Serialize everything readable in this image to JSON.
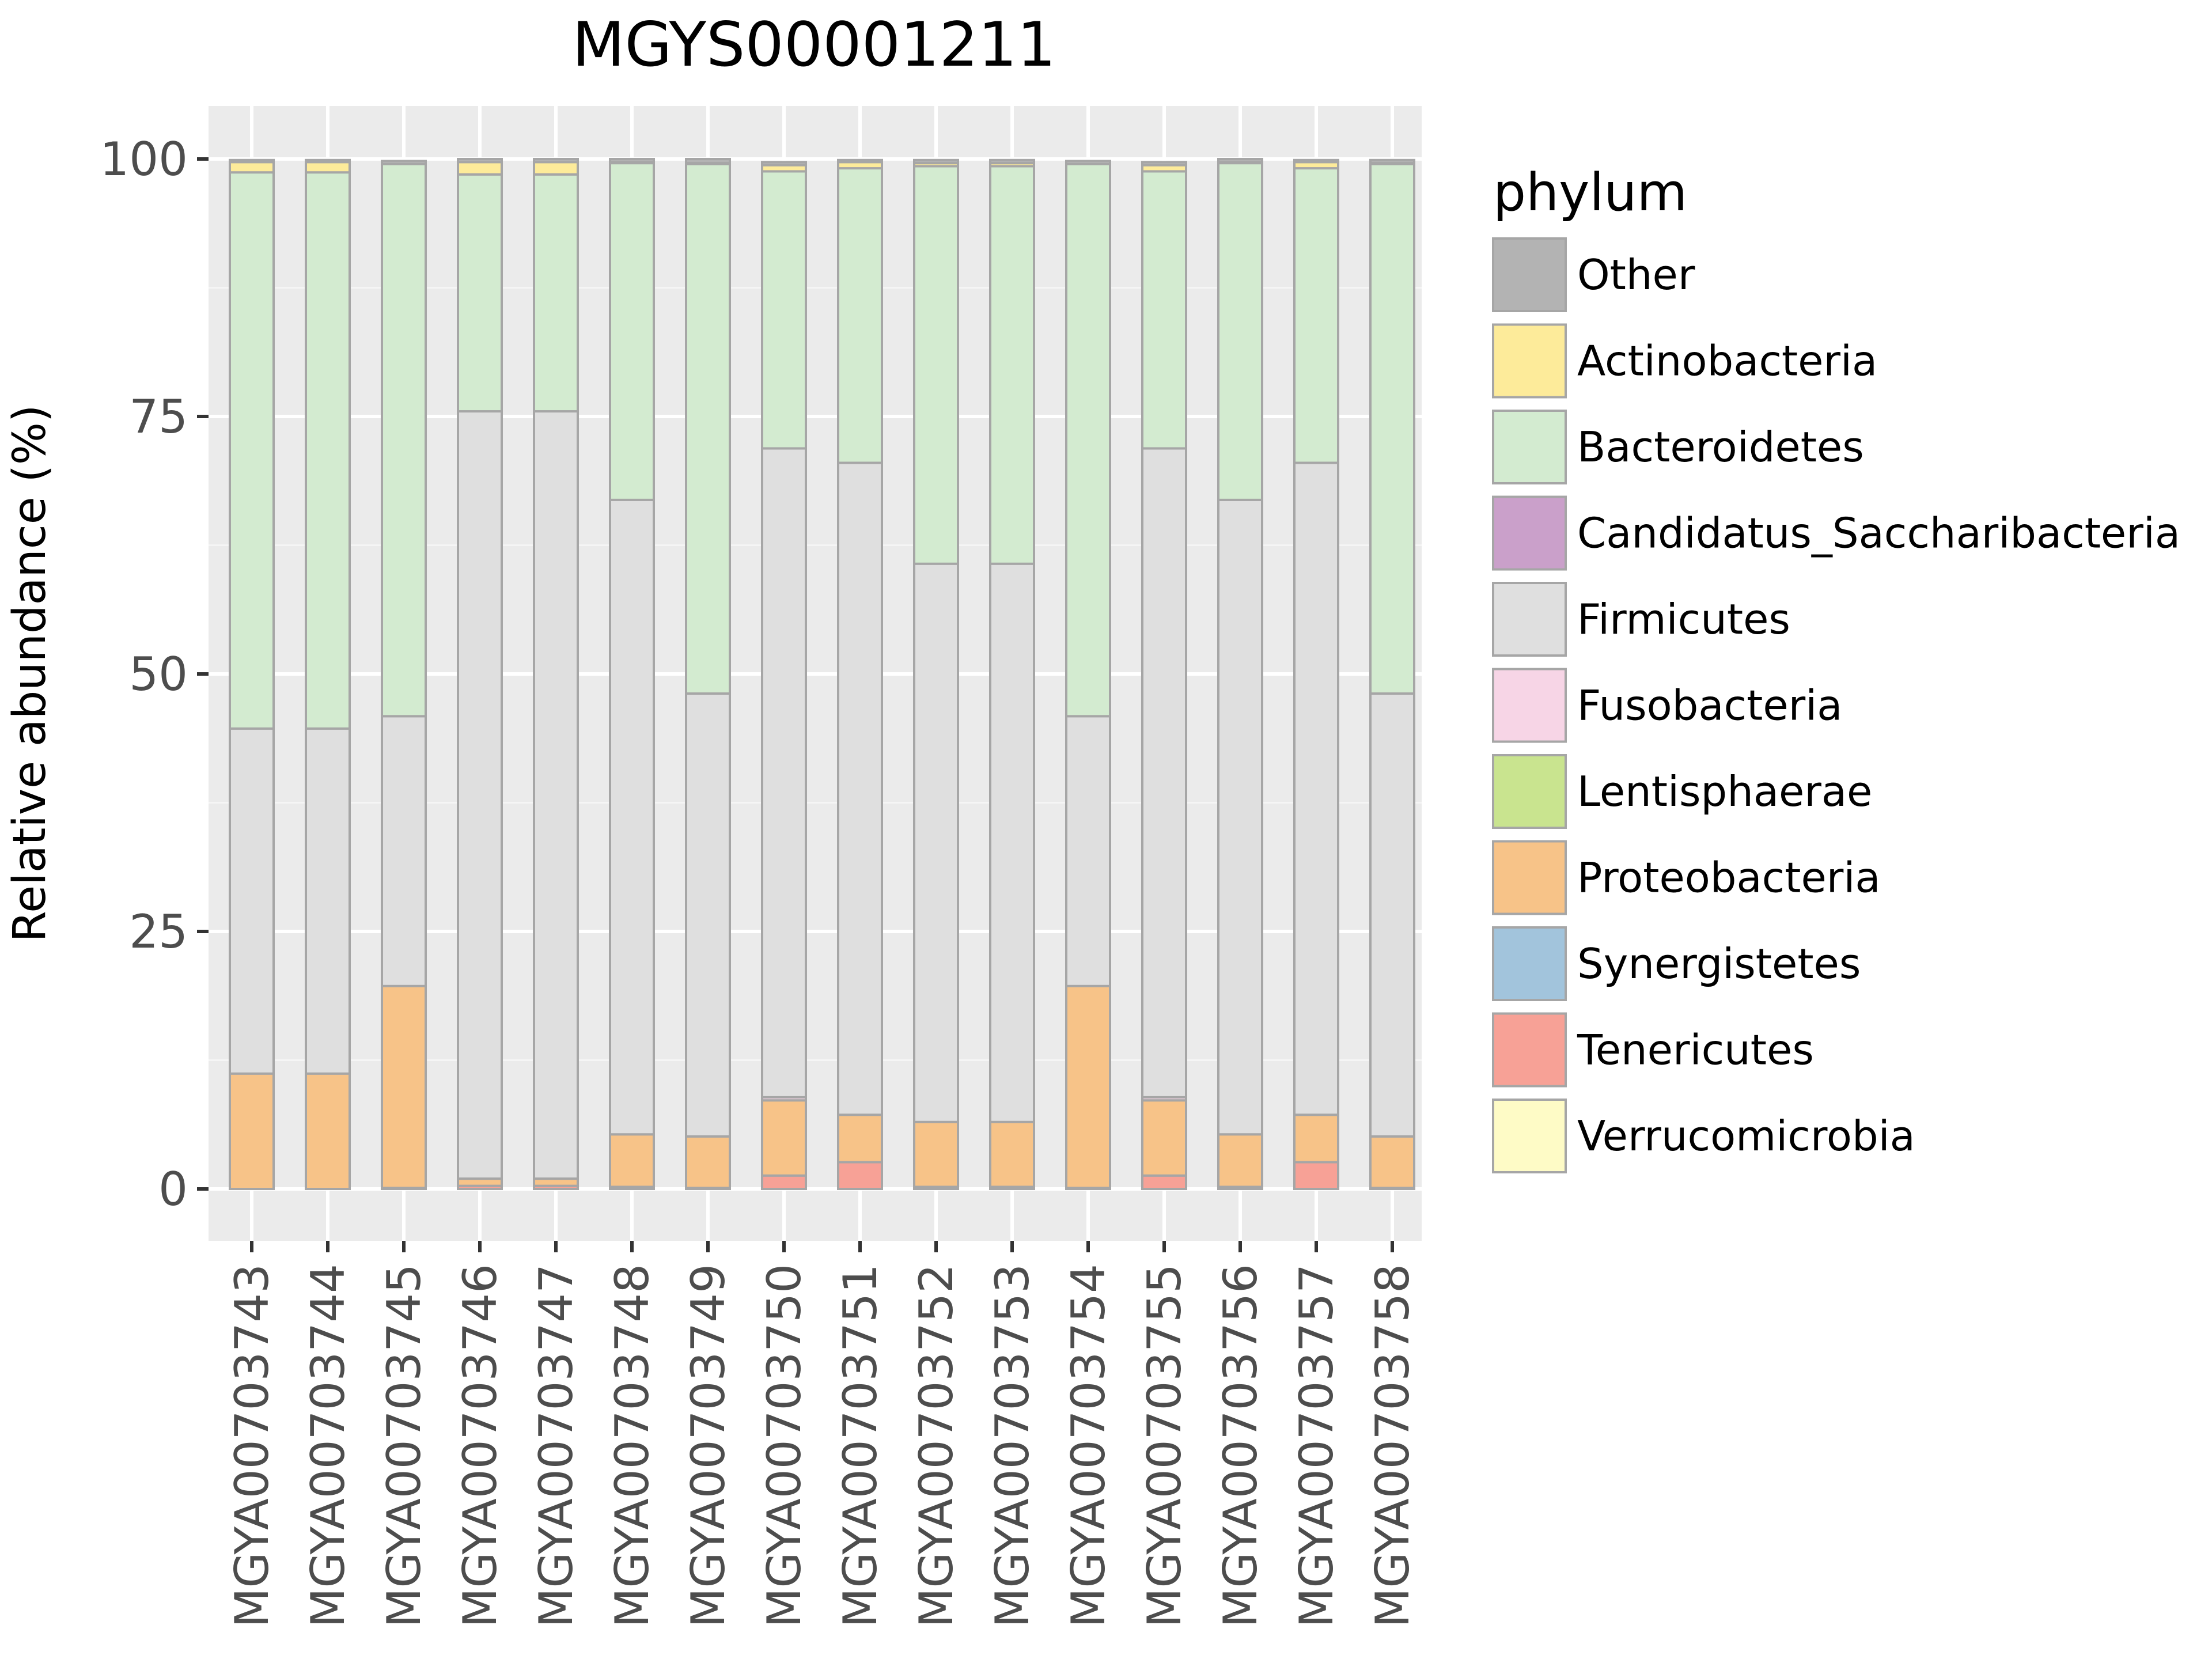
{
  "chart_data": {
    "type": "bar",
    "stacked": true,
    "title": "MGYS00001211",
    "xlabel": "",
    "ylabel": "Relative abundance (%)",
    "ylim": [
      0,
      100
    ],
    "yticks": [
      0,
      25,
      50,
      75,
      100
    ],
    "legend_title": "phylum",
    "legend_position": "right",
    "categories": [
      "MGYA00703743",
      "MGYA00703744",
      "MGYA00703745",
      "MGYA00703746",
      "MGYA00703747",
      "MGYA00703748",
      "MGYA00703749",
      "MGYA00703750",
      "MGYA00703751",
      "MGYA00703752",
      "MGYA00703753",
      "MGYA00703754",
      "MGYA00703755",
      "MGYA00703756",
      "MGYA00703757",
      "MGYA00703758"
    ],
    "series": [
      {
        "name": "Other",
        "color": "#B3B3B3",
        "values": [
          0.2,
          0.2,
          0.3,
          0.3,
          0.3,
          0.3,
          0.4,
          0.3,
          0.2,
          0.3,
          0.3,
          0.3,
          0.3,
          0.3,
          0.2,
          0.3
        ]
      },
      {
        "name": "Actinobacteria",
        "color": "#FDEB9A",
        "values": [
          1.0,
          1.0,
          0.0,
          1.2,
          1.2,
          0.1,
          0.1,
          0.6,
          0.6,
          0.3,
          0.3,
          0.0,
          0.6,
          0.1,
          0.6,
          0.1
        ]
      },
      {
        "name": "Bacteroidetes",
        "color": "#D3EBD0",
        "values": [
          54.0,
          54.0,
          53.6,
          23.0,
          23.0,
          32.7,
          51.4,
          26.9,
          28.6,
          38.6,
          38.6,
          53.6,
          26.9,
          32.7,
          28.6,
          51.4
        ]
      },
      {
        "name": "Candidatus_Saccharibacteria",
        "color": "#CAA0CA",
        "values": [
          0,
          0,
          0,
          0,
          0,
          0,
          0,
          0,
          0,
          0,
          0,
          0,
          0,
          0,
          0,
          0
        ]
      },
      {
        "name": "Firmicutes",
        "color": "#DFDFDF",
        "values": [
          33.5,
          33.5,
          26.2,
          74.5,
          74.5,
          61.6,
          43.0,
          63.0,
          63.3,
          54.2,
          54.2,
          26.2,
          63.0,
          61.6,
          63.3,
          43.0
        ]
      },
      {
        "name": "Fusobacteria",
        "color": "#F7D5E6",
        "values": [
          0,
          0,
          0,
          0,
          0,
          0,
          0,
          0.3,
          0,
          0,
          0,
          0,
          0.3,
          0,
          0,
          0
        ]
      },
      {
        "name": "Lentisphaerae",
        "color": "#C9E48F",
        "values": [
          0,
          0,
          0,
          0,
          0,
          0,
          0,
          0,
          0,
          0,
          0,
          0,
          0,
          0,
          0,
          0
        ]
      },
      {
        "name": "Proteobacteria",
        "color": "#F7C388",
        "values": [
          11.2,
          11.2,
          19.6,
          0.7,
          0.7,
          5.1,
          5.0,
          7.3,
          4.6,
          6.3,
          6.3,
          19.6,
          7.3,
          5.1,
          4.6,
          5.0
        ]
      },
      {
        "name": "Synergistetes",
        "color": "#A2C4DC",
        "values": [
          0,
          0,
          0,
          0,
          0,
          0,
          0,
          0,
          0,
          0,
          0,
          0,
          0,
          0,
          0,
          0
        ]
      },
      {
        "name": "Tenericutes",
        "color": "#F7A196",
        "values": [
          0,
          0,
          0.1,
          0.3,
          0.3,
          0.2,
          0.1,
          1.3,
          2.6,
          0.2,
          0.2,
          0.1,
          1.3,
          0.2,
          2.6,
          0.1
        ]
      },
      {
        "name": "Verrucomicrobia",
        "color": "#FEFBC6",
        "values": [
          0,
          0,
          0,
          0,
          0,
          0,
          0,
          0,
          0,
          0,
          0,
          0,
          0,
          0,
          0,
          0
        ]
      }
    ]
  }
}
